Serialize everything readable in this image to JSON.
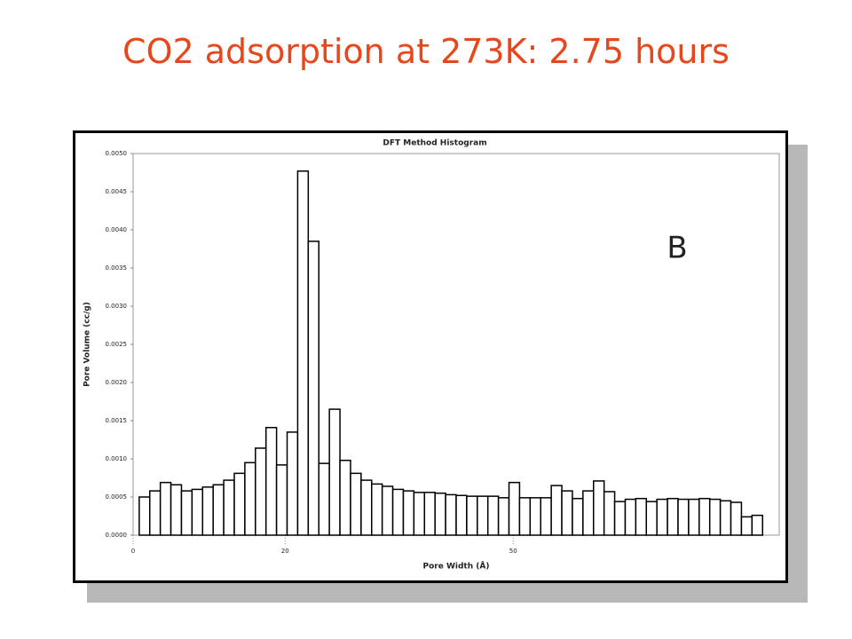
{
  "slide_title": "CO2 adsorption at 273K: 2.75 hours",
  "chart_data": {
    "type": "histogram",
    "title": "DFT Method Histogram",
    "x_label": "Pore Width (Å)",
    "y_label": "Pore Volume (cc/g)",
    "annotation": "B",
    "bins": [
      0.8,
      2.19,
      3.58,
      4.97,
      6.36,
      7.75,
      9.14,
      10.53,
      11.92,
      13.31,
      14.7,
      16.09,
      17.48,
      18.87,
      20.26,
      21.65,
      23.04,
      24.43,
      25.82,
      27.21,
      28.6,
      29.99,
      31.38,
      32.77,
      34.16,
      35.55,
      36.94,
      38.33,
      39.72,
      41.11,
      42.5,
      43.89,
      45.28,
      46.67,
      48.06,
      49.45,
      50.84,
      52.23,
      53.62,
      55.01,
      56.4,
      57.79,
      59.18,
      60.57,
      61.96,
      63.35,
      64.74,
      66.13,
      67.52,
      68.91,
      70.3,
      71.69,
      73.08,
      74.47,
      75.86,
      77.25,
      78.64,
      80.03,
      81.42,
      82.81
    ],
    "values": [
      0.0005,
      0.00058,
      0.00069,
      0.00066,
      0.00058,
      0.0006,
      0.00063,
      0.00066,
      0.00072,
      0.00081,
      0.00095,
      0.00114,
      0.00141,
      0.00092,
      0.00135,
      0.00477,
      0.00385,
      0.00094,
      0.00165,
      0.00098,
      0.00081,
      0.00072,
      0.00067,
      0.00064,
      0.0006,
      0.00058,
      0.00056,
      0.00056,
      0.00055,
      0.00053,
      0.00052,
      0.00051,
      0.00051,
      0.00051,
      0.00049,
      0.00069,
      0.00049,
      0.00049,
      0.00049,
      0.00065,
      0.00058,
      0.00048,
      0.00058,
      0.00071,
      0.00057,
      0.00044,
      0.00047,
      0.00048,
      0.00044,
      0.00047,
      0.00048,
      0.00047,
      0.00047,
      0.00048,
      0.00047,
      0.00045,
      0.00043,
      0.00024,
      0.00026
    ],
    "color": "#ffffff",
    "xlim": [
      0,
      85
    ],
    "xticks": [
      0,
      20,
      50
    ],
    "ylim": [
      0,
      0.005
    ],
    "yticks": [
      {
        "value": 0,
        "label": "0.0000"
      },
      {
        "value": 0.0005,
        "label": "0.0005"
      },
      {
        "value": 0.001,
        "label": "0.0010"
      },
      {
        "value": 0.0015,
        "label": "0.0015"
      },
      {
        "value": 0.002,
        "label": "0.0020"
      },
      {
        "value": 0.0025,
        "label": "0.0025"
      },
      {
        "value": 0.003,
        "label": "0.0030"
      },
      {
        "value": 0.0035,
        "label": "0.0035"
      },
      {
        "value": 0.004,
        "label": "0.0040"
      },
      {
        "value": 0.0045,
        "label": "0.0045"
      },
      {
        "value": 0.005,
        "label": "0.0050"
      }
    ],
    "grid": false
  }
}
